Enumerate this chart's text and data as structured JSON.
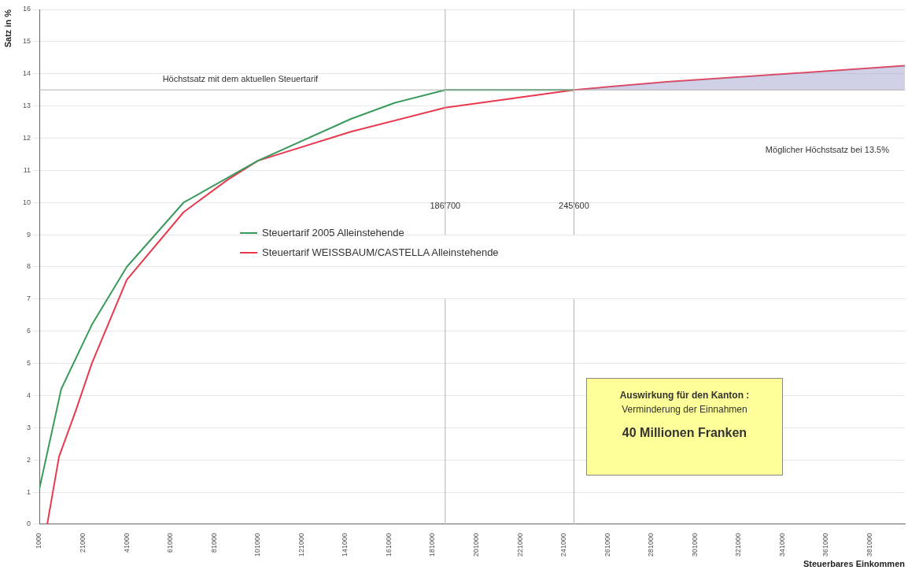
{
  "chart_data": {
    "type": "line",
    "xlabel": "Steuerbares Einkommen",
    "ylabel": "Satz in %",
    "xlim": [
      1000,
      397000
    ],
    "xticks": [
      1000,
      21000,
      41000,
      61000,
      81000,
      101000,
      121000,
      141000,
      161000,
      181000,
      201000,
      221000,
      241000,
      261000,
      281000,
      301000,
      321000,
      341000,
      361000,
      381000
    ],
    "ylim": [
      0,
      16
    ],
    "yticks": [
      0,
      1,
      2,
      3,
      4,
      5,
      6,
      7,
      8,
      9,
      10,
      11,
      12,
      13,
      14,
      15,
      16
    ],
    "grid": "y",
    "legend": "center left",
    "marker": "none",
    "line_style": "solid",
    "series": [
      {
        "name": "Steuertarif 2005 Alleinstehende",
        "color": "#3a9a5c",
        "x": [
          1000,
          11000,
          25000,
          41000,
          67000,
          90600,
          101000,
          143600,
          163700,
          186700,
          245600
        ],
        "values": [
          1.1,
          4.2,
          6.2,
          8.0,
          10.0,
          10.9,
          11.3,
          12.6,
          13.1,
          13.5,
          13.5
        ]
      },
      {
        "name": "Steuertarif  WEISSBAUM/CASTELLA Alleinstehende",
        "color": "#e8394f",
        "x": [
          4600,
          10000,
          17500,
          25000,
          41000,
          67000,
          87000,
          101000,
          143600,
          186700,
          245600,
          288000,
          343000,
          397000
        ],
        "values": [
          0,
          2.1,
          3.5,
          5.0,
          7.6,
          9.7,
          10.7,
          11.3,
          12.2,
          12.95,
          13.5,
          13.75,
          14.0,
          14.25
        ],
        "lower": [
          null,
          null,
          null,
          null,
          null,
          null,
          null,
          null,
          null,
          null,
          13.5,
          13.5,
          13.5,
          13.5
        ],
        "upper": [
          null,
          null,
          null,
          null,
          null,
          null,
          null,
          null,
          null,
          null,
          13.5,
          13.75,
          14.0,
          14.25
        ]
      }
    ],
    "ref_lines": [
      {
        "axis": "y",
        "value": 13.5,
        "label": "Höchstsatz mit dem aktuellen Steuertarif",
        "color": "#b0b0b0"
      },
      {
        "axis": "x",
        "value": 186700,
        "label": "186'700",
        "color": "#b0b0b0"
      },
      {
        "axis": "x",
        "value": 245600,
        "label": "245'600",
        "color": "#b0b0b0"
      }
    ],
    "annotations": [
      "Möglicher Höchstsatz bei 13.5%",
      "Auswirkung für den Kanton :",
      "Verminderung der Einnahmen",
      "40 Millionen Franken"
    ]
  }
}
